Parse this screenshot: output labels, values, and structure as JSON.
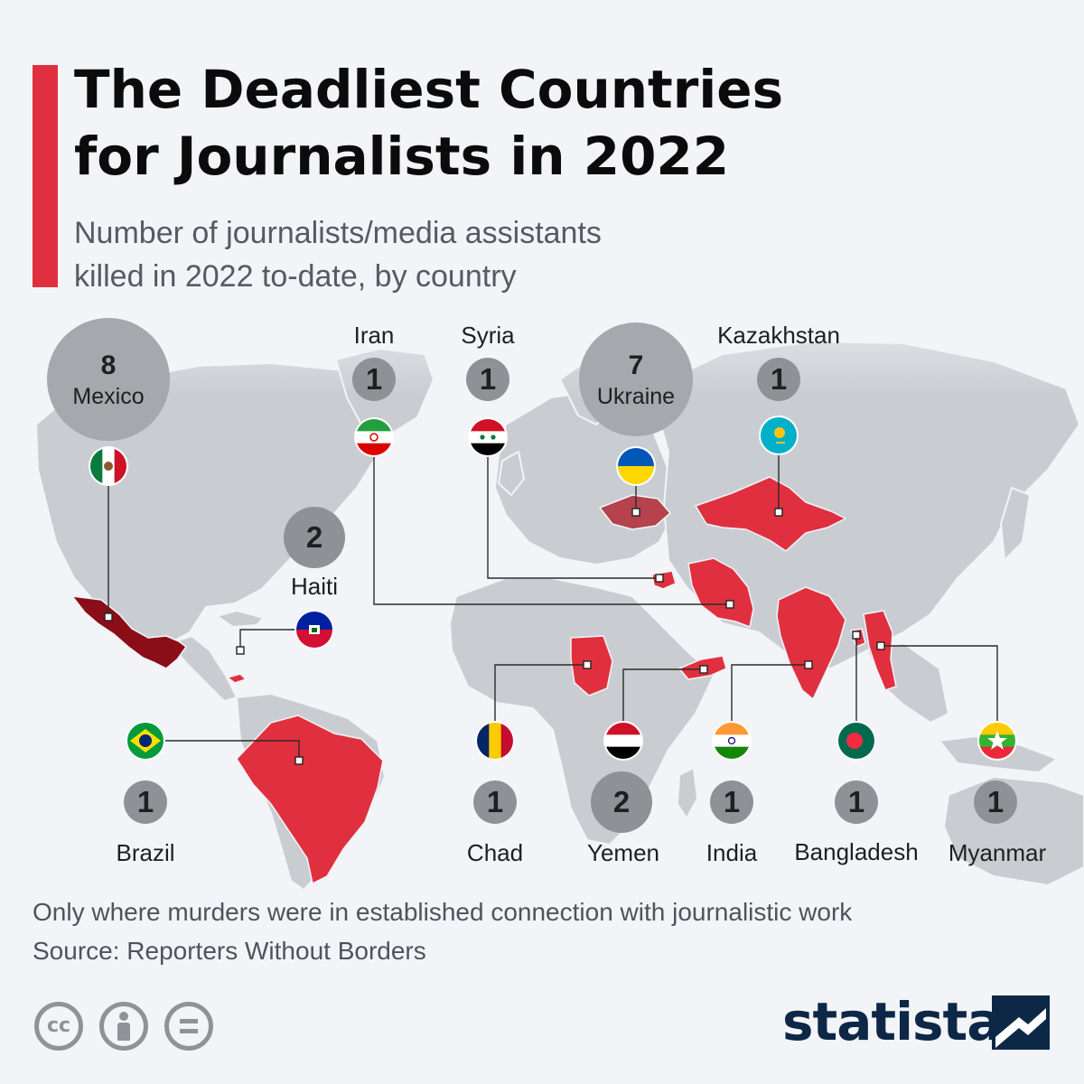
{
  "header": {
    "title_line1": "The Deadliest Countries",
    "title_line2": "for Journalists in 2022",
    "subtitle_line1": "Number of journalists/media assistants",
    "subtitle_line2": "killed in 2022 to-date, by country"
  },
  "colors": {
    "accent": "#e0303f",
    "map_land": "#c9cdd2",
    "highlight": "#e0303f",
    "highlight_dark": "#8b0d17",
    "ukraine": "#b5424c",
    "bubble_large": "#a5a8ad",
    "bubble_small": "#8e9297",
    "background": "#f2f4f7"
  },
  "markers": [
    {
      "id": "mexico",
      "country": "Mexico",
      "count": 8,
      "flag": "mexico-flag-icon",
      "fill": "#8b0d17"
    },
    {
      "id": "iran",
      "country": "Iran",
      "count": 1,
      "flag": "iran-flag-icon",
      "fill": "#e0303f"
    },
    {
      "id": "syria",
      "country": "Syria",
      "count": 1,
      "flag": "syria-flag-icon",
      "fill": "#e0303f"
    },
    {
      "id": "ukraine",
      "country": "Ukraine",
      "count": 7,
      "flag": "ukraine-flag-icon",
      "fill": "#b5424c"
    },
    {
      "id": "kazakhstan",
      "country": "Kazakhstan",
      "count": 1,
      "flag": "kazakhstan-flag-icon",
      "fill": "#e0303f"
    },
    {
      "id": "haiti",
      "country": "Haiti",
      "count": 2,
      "flag": "haiti-flag-icon",
      "fill": "#e0303f"
    },
    {
      "id": "brazil",
      "country": "Brazil",
      "count": 1,
      "flag": "brazil-flag-icon",
      "fill": "#e0303f"
    },
    {
      "id": "chad",
      "country": "Chad",
      "count": 1,
      "flag": "chad-flag-icon",
      "fill": "#e0303f"
    },
    {
      "id": "yemen",
      "country": "Yemen",
      "count": 2,
      "flag": "yemen-flag-icon",
      "fill": "#e0303f"
    },
    {
      "id": "india",
      "country": "India",
      "count": 1,
      "flag": "india-flag-icon",
      "fill": "#e0303f"
    },
    {
      "id": "bangladesh",
      "country": "Bangladesh",
      "count": 1,
      "flag": "bangladesh-flag-icon",
      "fill": "#e0303f"
    },
    {
      "id": "myanmar",
      "country": "Myanmar",
      "count": 1,
      "flag": "myanmar-flag-icon",
      "fill": "#e0303f"
    }
  ],
  "footer": {
    "note": "Only where murders were in established connection with journalistic work",
    "source": "Source: Reporters Without Borders",
    "license_icons": [
      "creative-commons-icon",
      "attribution-icon",
      "no-derivatives-icon"
    ],
    "cc_glyph": "cc",
    "brand": "statista"
  }
}
